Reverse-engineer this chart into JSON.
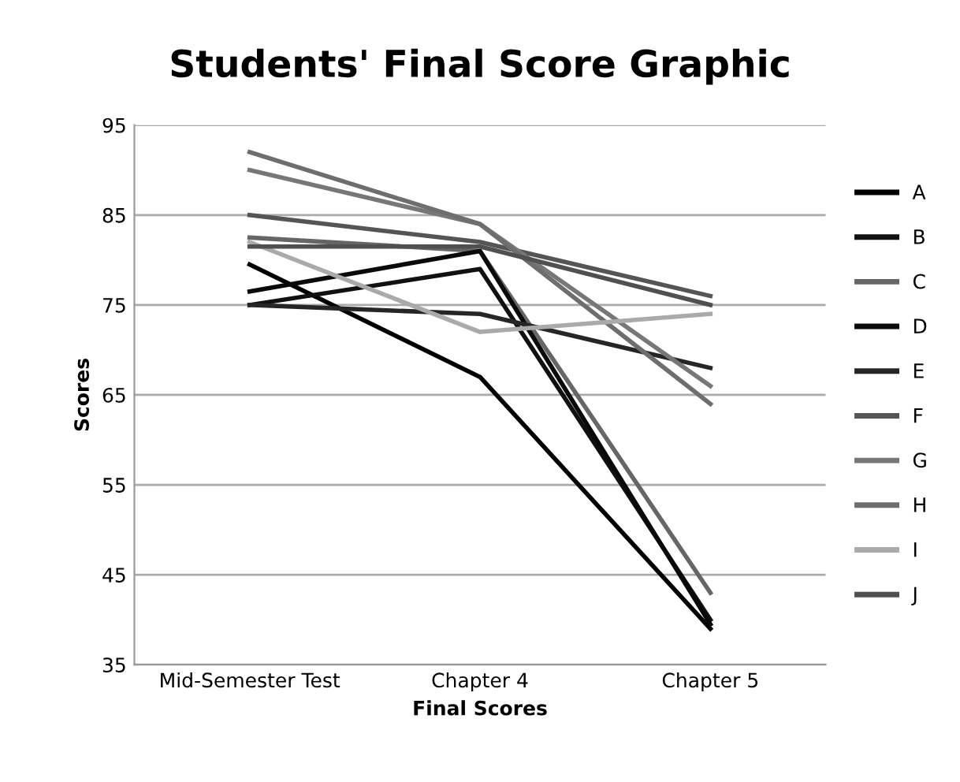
{
  "chart_data": {
    "type": "line",
    "title": "Students' Final Score Graphic",
    "xlabel": "Final Scores",
    "ylabel": "Scores",
    "categories": [
      "Mid-Semester Test",
      "Chapter 4",
      "Chapter 5"
    ],
    "ylim": [
      35,
      95
    ],
    "yticks": [
      35,
      45,
      55,
      65,
      75,
      85,
      95
    ],
    "grid": "y",
    "legend": "right",
    "marker": "none",
    "line_style": "solid",
    "series": [
      {
        "name": "A",
        "color": "#000000",
        "values": [
          79.5,
          67,
          39
        ]
      },
      {
        "name": "B",
        "color": "#111111",
        "values": [
          75,
          79,
          40
        ]
      },
      {
        "name": "C",
        "color": "#666666",
        "values": [
          82.5,
          81,
          43
        ]
      },
      {
        "name": "D",
        "color": "#0a0a0a",
        "values": [
          76.5,
          81,
          39.5
        ]
      },
      {
        "name": "E",
        "color": "#262626",
        "values": [
          75,
          74,
          68
        ]
      },
      {
        "name": "F",
        "color": "#555555",
        "values": [
          85,
          82,
          76
        ]
      },
      {
        "name": "G",
        "color": "#777777",
        "values": [
          90,
          84,
          66
        ]
      },
      {
        "name": "H",
        "color": "#6e6e6e",
        "values": [
          92,
          84,
          64
        ]
      },
      {
        "name": "I",
        "color": "#aaaaaa",
        "values": [
          82,
          72,
          74
        ]
      },
      {
        "name": "J",
        "color": "#505050",
        "values": [
          81.5,
          81.5,
          75
        ]
      }
    ]
  }
}
